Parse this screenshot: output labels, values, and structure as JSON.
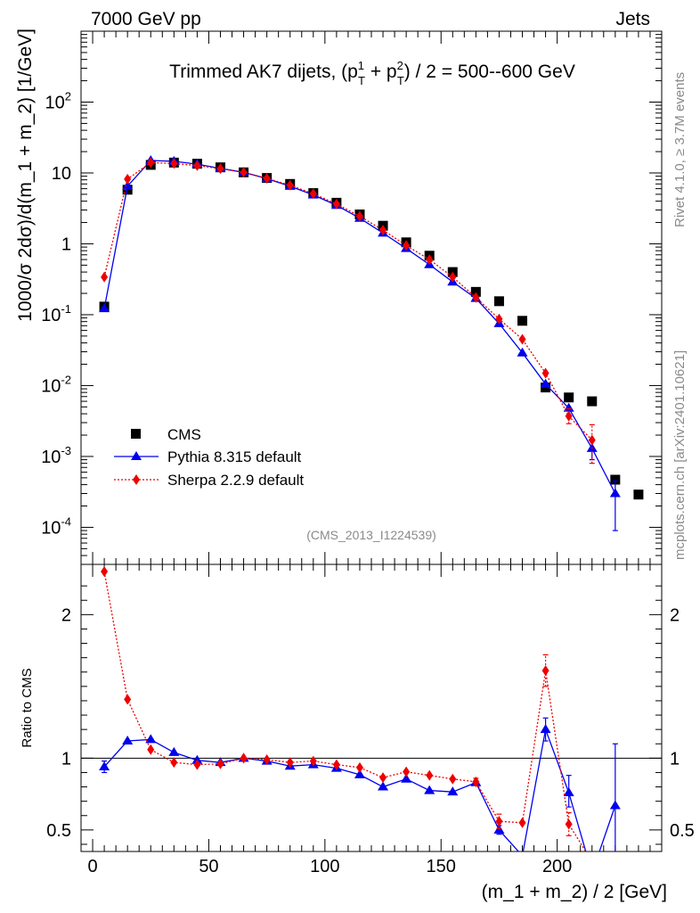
{
  "header": {
    "left": "7000 GeV pp",
    "right": "Jets"
  },
  "side_text": {
    "rivet": "Rivet 4.1.0, ≥ 3.7M events",
    "mcplots": "mcplots.cern.ch [arXiv:2401.10621]"
  },
  "chart_data": [
    {
      "type": "scatter",
      "panel": "main",
      "title": "Trimmed AK7 dijets, (p_T^1 + p_T^2) / 2 = 500--600 GeV",
      "title_parts": {
        "prefix": "Trimmed AK7 dijets, (p",
        "sup1": "1",
        "sub1": "T",
        "plus": " + p",
        "sup2": "2",
        "sub2": "T",
        "suffix": ") / 2 = 500--600 GeV"
      },
      "ylabel": "1000/σ  2dσ)/d(m_1 + m_2) [1/GeV]",
      "ylabel_parts": {
        "a": "1000/σ  2d",
        "b": "σ",
        "c": ")/d(m_1 + m_2) [1/GeV]"
      },
      "yscale": "log",
      "ylim": [
        3e-05,
        1000
      ],
      "xlim": [
        -5,
        245
      ],
      "y_ticks": [
        {
          "value": 0.0001,
          "base": "10",
          "exp": "-4"
        },
        {
          "value": 0.001,
          "base": "10",
          "exp": "-3"
        },
        {
          "value": 0.01,
          "base": "10",
          "exp": "-2"
        },
        {
          "value": 0.1,
          "base": "10",
          "exp": "-1"
        },
        {
          "value": 1,
          "base": "1",
          "exp": ""
        },
        {
          "value": 10,
          "base": "10",
          "exp": ""
        },
        {
          "value": 100,
          "base": "10",
          "exp": "2"
        }
      ],
      "watermark": "(CMS_2013_I1224539)",
      "legend_position": "bottom-left",
      "series": [
        {
          "name": "CMS",
          "style": "data-square",
          "color": "#000000",
          "x": [
            5,
            15,
            25,
            35,
            45,
            55,
            65,
            75,
            85,
            95,
            105,
            115,
            125,
            135,
            145,
            155,
            165,
            175,
            185,
            195,
            205,
            215,
            225,
            235
          ],
          "y": [
            0.13,
            5.8,
            13,
            14,
            13.5,
            12,
            10.2,
            8.5,
            7,
            5.2,
            3.8,
            2.6,
            1.8,
            1.05,
            0.68,
            0.4,
            0.21,
            0.155,
            0.082,
            0.0094,
            0.0068,
            0.006,
            0.00047,
            0.00029
          ]
        },
        {
          "name": "Pythia 8.315 default",
          "style": "triangle-line",
          "color": "#0000ee",
          "x": [
            5,
            15,
            25,
            35,
            45,
            55,
            65,
            75,
            85,
            95,
            105,
            115,
            125,
            135,
            145,
            155,
            165,
            175,
            185,
            195,
            205,
            215,
            225
          ],
          "y": [
            0.122,
            6.5,
            15,
            14.6,
            13.3,
            11.6,
            10.2,
            8.3,
            6.5,
            4.9,
            3.5,
            2.3,
            1.42,
            0.86,
            0.51,
            0.29,
            0.17,
            0.075,
            0.029,
            0.0105,
            0.0048,
            0.0013,
            0.0003
          ],
          "err_low": [
            null,
            null,
            null,
            null,
            null,
            null,
            null,
            null,
            null,
            null,
            null,
            null,
            null,
            null,
            null,
            null,
            null,
            null,
            null,
            null,
            null,
            0.0009,
            9e-05
          ],
          "err_high": [
            null,
            null,
            null,
            null,
            null,
            null,
            null,
            null,
            null,
            null,
            null,
            null,
            null,
            null,
            null,
            null,
            null,
            null,
            null,
            null,
            null,
            0.0017,
            0.00045
          ]
        },
        {
          "name": "Sherpa 2.2.9 default",
          "style": "diamond-dotted",
          "color": "#ee0000",
          "x": [
            5,
            15,
            25,
            35,
            45,
            55,
            65,
            75,
            85,
            95,
            105,
            115,
            125,
            135,
            145,
            155,
            165,
            175,
            185,
            195,
            205,
            215
          ],
          "y": [
            0.34,
            8.2,
            14,
            13.6,
            12.7,
            11.5,
            10.2,
            8.4,
            6.7,
            5.1,
            3.65,
            2.45,
            1.56,
            0.95,
            0.6,
            0.34,
            0.175,
            0.087,
            0.045,
            0.015,
            0.0037,
            0.0017
          ],
          "err_low": [
            null,
            null,
            null,
            null,
            null,
            null,
            null,
            null,
            null,
            null,
            null,
            null,
            null,
            null,
            null,
            null,
            null,
            null,
            null,
            null,
            0.0029,
            0.0008
          ],
          "err_high": [
            null,
            null,
            null,
            null,
            null,
            null,
            null,
            null,
            null,
            null,
            null,
            null,
            null,
            null,
            null,
            null,
            null,
            null,
            null,
            null,
            0.0047,
            0.0028
          ]
        }
      ]
    },
    {
      "type": "line",
      "panel": "ratio",
      "ylabel": "Ratio to CMS",
      "xlabel": "(m_1 + m_2) / 2 [GeV]",
      "xlim": [
        -5,
        245
      ],
      "ylim": [
        0.35,
        2.35
      ],
      "y_ticks": [
        0.5,
        1,
        2
      ],
      "y_tick_labels": [
        "0.5",
        "1",
        "2"
      ],
      "x_ticks": [
        0,
        50,
        100,
        150,
        200
      ],
      "x_tick_labels": [
        "0",
        "50",
        "100",
        "150",
        "200"
      ],
      "reference_line": 1,
      "series": [
        {
          "name": "Pythia 8.315 default",
          "color": "#0000ee",
          "x": [
            5,
            15,
            25,
            35,
            45,
            55,
            65,
            75,
            85,
            95,
            105,
            115,
            125,
            135,
            145,
            155,
            165,
            175,
            185,
            195,
            205,
            215,
            225
          ],
          "y": [
            0.94,
            1.12,
            1.13,
            1.04,
            0.985,
            0.97,
            1.0,
            0.98,
            0.945,
            0.955,
            0.93,
            0.885,
            0.8,
            0.855,
            0.775,
            0.765,
            0.83,
            0.5,
            0.32,
            1.2,
            0.76,
            0.2,
            0.67
          ],
          "err_low": [
            0.9,
            null,
            null,
            null,
            null,
            null,
            null,
            null,
            null,
            null,
            null,
            null,
            null,
            null,
            null,
            null,
            null,
            0.47,
            null,
            1.12,
            0.66,
            null,
            0.2
          ],
          "err_high": [
            0.98,
            null,
            null,
            null,
            null,
            null,
            null,
            null,
            null,
            null,
            null,
            null,
            null,
            null,
            null,
            null,
            null,
            0.53,
            null,
            1.28,
            0.88,
            null,
            1.1
          ]
        },
        {
          "name": "Sherpa 2.2.9 default",
          "color": "#ee0000",
          "x": [
            5,
            15,
            25,
            35,
            45,
            55,
            65,
            75,
            85,
            95,
            105,
            115,
            125,
            135,
            145,
            155,
            165,
            175,
            185,
            195,
            205,
            215
          ],
          "y": [
            2.3,
            1.41,
            1.06,
            0.97,
            0.955,
            0.96,
            1.0,
            0.99,
            0.97,
            0.98,
            0.955,
            0.935,
            0.865,
            0.905,
            0.88,
            0.855,
            0.835,
            0.56,
            0.55,
            1.61,
            0.54,
            0.28
          ],
          "err_low": [
            null,
            null,
            null,
            null,
            null,
            null,
            null,
            null,
            null,
            null,
            null,
            null,
            null,
            null,
            null,
            null,
            0.81,
            0.51,
            null,
            1.5,
            0.46,
            null
          ],
          "err_high": [
            null,
            null,
            null,
            null,
            null,
            null,
            null,
            null,
            null,
            null,
            null,
            null,
            null,
            null,
            null,
            null,
            0.86,
            0.61,
            null,
            1.72,
            0.62,
            null
          ]
        }
      ]
    }
  ]
}
